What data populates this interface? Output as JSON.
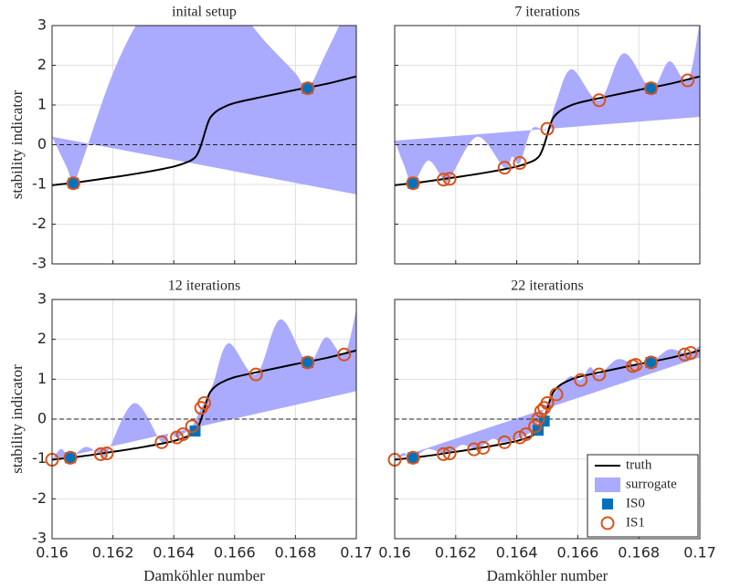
{
  "chart_data": [
    {
      "type": "line",
      "title": "inital setup",
      "ylabel": "stability indicator",
      "xlim": [
        0.16,
        0.17
      ],
      "ylim": [
        -3,
        3
      ],
      "xticks": [
        0.16,
        0.162,
        0.164,
        0.166,
        0.168,
        0.17
      ],
      "yticks": [
        -3,
        -2,
        -1,
        0,
        1,
        2,
        3
      ],
      "show_xtick_labels": false,
      "show_ytick_labels": true,
      "grid": true,
      "hline": 0,
      "series": [
        {
          "name": "truth",
          "color": "#000000",
          "x": [
            0.16,
            0.161,
            0.162,
            0.163,
            0.164,
            0.1645,
            0.1647,
            0.1648,
            0.1649,
            0.165,
            0.1651,
            0.1652,
            0.1654,
            0.1656,
            0.166,
            0.167,
            0.168,
            0.169,
            0.17
          ],
          "values": [
            -1.02,
            -0.93,
            -0.82,
            -0.7,
            -0.55,
            -0.42,
            -0.32,
            -0.2,
            0.0,
            0.25,
            0.5,
            0.68,
            0.84,
            0.93,
            1.05,
            1.22,
            1.38,
            1.53,
            1.72
          ]
        },
        {
          "name": "surrogate",
          "color": "#aaaaff",
          "x": [
            0.16,
            0.1605,
            0.1607,
            0.161,
            0.162,
            0.163,
            0.164,
            0.165,
            0.166,
            0.167,
            0.168,
            0.1684,
            0.169,
            0.17
          ],
          "upper": [
            0.2,
            -0.6,
            -0.97,
            -0.4,
            1.8,
            3.3,
            4.0,
            4.0,
            3.5,
            2.6,
            1.8,
            1.42,
            2.3,
            3.9
          ],
          "lower": [
            -2.0,
            -1.3,
            -0.97,
            -1.5,
            -2.7,
            -3.4,
            -3.8,
            -3.6,
            -2.2,
            -0.6,
            0.9,
            1.42,
            0.4,
            -1.25
          ]
        },
        {
          "name": "IS0",
          "color": "#0072bd",
          "marker": "square",
          "x": [
            0.1607,
            0.1684
          ],
          "values": [
            -0.97,
            1.42
          ]
        },
        {
          "name": "IS1",
          "color": "#d95319",
          "marker": "circle",
          "x": [
            0.1607,
            0.1684
          ],
          "values": [
            -0.97,
            1.42
          ]
        }
      ]
    },
    {
      "type": "line",
      "title": "7 iterations",
      "xlim": [
        0.16,
        0.17
      ],
      "ylim": [
        -3,
        3
      ],
      "xticks": [
        0.16,
        0.162,
        0.164,
        0.166,
        0.168,
        0.17
      ],
      "yticks": [
        -3,
        -2,
        -1,
        0,
        1,
        2,
        3
      ],
      "show_xtick_labels": false,
      "show_ytick_labels": false,
      "grid": true,
      "hline": 0,
      "series": [
        {
          "name": "truth",
          "color": "#000000",
          "x": [
            0.16,
            0.161,
            0.162,
            0.163,
            0.164,
            0.1645,
            0.1647,
            0.1648,
            0.1649,
            0.165,
            0.1651,
            0.1652,
            0.1654,
            0.1656,
            0.166,
            0.167,
            0.168,
            0.169,
            0.17
          ],
          "values": [
            -1.02,
            -0.93,
            -0.82,
            -0.7,
            -0.55,
            -0.42,
            -0.32,
            -0.2,
            0.0,
            0.25,
            0.5,
            0.68,
            0.84,
            0.93,
            1.05,
            1.22,
            1.38,
            1.53,
            1.72
          ]
        },
        {
          "name": "surrogate",
          "color": "#aaaaff",
          "x": [
            0.16,
            0.1603,
            0.1606,
            0.1611,
            0.1616,
            0.1618,
            0.1627,
            0.1636,
            0.16385,
            0.1641,
            0.1645,
            0.165,
            0.1653,
            0.1658,
            0.1667,
            0.1675,
            0.1684,
            0.169,
            0.1696,
            0.17
          ],
          "upper": [
            0.1,
            -0.5,
            -0.97,
            -0.4,
            -0.88,
            -0.86,
            0.2,
            -0.58,
            -0.3,
            -0.46,
            0.4,
            0.4,
            1.1,
            1.9,
            1.12,
            2.3,
            1.42,
            2.1,
            1.62,
            3.1
          ],
          "lower": [
            -2.45,
            -1.4,
            -0.97,
            -1.3,
            -0.88,
            -0.86,
            -1.75,
            -0.58,
            -0.75,
            -0.46,
            -1.0,
            0.4,
            0.5,
            0.1,
            1.12,
            0.0,
            1.42,
            0.9,
            1.62,
            0.7
          ]
        },
        {
          "name": "IS0",
          "color": "#0072bd",
          "marker": "square",
          "x": [
            0.1606,
            0.1684
          ],
          "values": [
            -0.97,
            1.42
          ]
        },
        {
          "name": "IS1",
          "color": "#d95319",
          "marker": "circle",
          "x": [
            0.1606,
            0.1616,
            0.1618,
            0.1636,
            0.1641,
            0.165,
            0.1667,
            0.1684,
            0.1696
          ],
          "values": [
            -0.97,
            -0.88,
            -0.86,
            -0.58,
            -0.46,
            0.4,
            1.12,
            1.42,
            1.62
          ]
        }
      ]
    },
    {
      "type": "line",
      "title": "12 iterations",
      "xlabel": "Damköhler number",
      "ylabel": "stability indicator",
      "xlim": [
        0.16,
        0.17
      ],
      "ylim": [
        -3,
        3
      ],
      "xticks": [
        0.16,
        0.162,
        0.164,
        0.166,
        0.168,
        0.17
      ],
      "yticks": [
        -3,
        -2,
        -1,
        0,
        1,
        2,
        3
      ],
      "show_xtick_labels": true,
      "show_ytick_labels": true,
      "grid": true,
      "hline": 0,
      "series": [
        {
          "name": "truth",
          "color": "#000000",
          "x": [
            0.16,
            0.161,
            0.162,
            0.163,
            0.164,
            0.1645,
            0.1647,
            0.1648,
            0.1649,
            0.165,
            0.1651,
            0.1652,
            0.1654,
            0.1656,
            0.166,
            0.167,
            0.168,
            0.169,
            0.17
          ],
          "values": [
            -1.02,
            -0.93,
            -0.82,
            -0.7,
            -0.55,
            -0.42,
            -0.32,
            -0.2,
            0.0,
            0.25,
            0.5,
            0.68,
            0.84,
            0.93,
            1.05,
            1.22,
            1.38,
            1.53,
            1.72
          ]
        },
        {
          "name": "surrogate",
          "color": "#aaaaff",
          "x": [
            0.16,
            0.1603,
            0.1606,
            0.1611,
            0.1616,
            0.1618,
            0.1627,
            0.1636,
            0.16385,
            0.1641,
            0.1643,
            0.1646,
            0.1649,
            0.165,
            0.1653,
            0.1658,
            0.1667,
            0.1675,
            0.1684,
            0.169,
            0.1696,
            0.17
          ],
          "upper": [
            -1.02,
            -0.75,
            -0.97,
            -0.7,
            -0.88,
            -0.86,
            0.4,
            -0.58,
            -0.35,
            -0.46,
            -0.38,
            -0.18,
            0.28,
            0.4,
            0.9,
            1.9,
            1.12,
            2.5,
            1.42,
            2.05,
            1.62,
            2.75
          ],
          "lower": [
            -1.02,
            -1.3,
            -0.97,
            -1.1,
            -0.88,
            -0.86,
            -1.8,
            -0.58,
            -0.7,
            -0.46,
            -0.38,
            -0.18,
            0.28,
            0.4,
            0.35,
            0.1,
            1.12,
            -0.2,
            1.42,
            0.9,
            1.62,
            0.7
          ]
        },
        {
          "name": "IS0",
          "color": "#0072bd",
          "marker": "square",
          "x": [
            0.1606,
            0.1647,
            0.1684
          ],
          "values": [
            -0.97,
            -0.3,
            1.42
          ]
        },
        {
          "name": "IS1",
          "color": "#d95319",
          "marker": "circle",
          "x": [
            0.16,
            0.1606,
            0.1616,
            0.1618,
            0.1636,
            0.1641,
            0.1643,
            0.1646,
            0.1649,
            0.165,
            0.1667,
            0.1684,
            0.1696
          ],
          "values": [
            -1.02,
            -0.97,
            -0.88,
            -0.86,
            -0.58,
            -0.46,
            -0.38,
            -0.18,
            0.28,
            0.4,
            1.12,
            1.42,
            1.62
          ]
        }
      ]
    },
    {
      "type": "line",
      "title": "22 iterations",
      "xlabel": "Damköhler number",
      "xlim": [
        0.16,
        0.17
      ],
      "ylim": [
        -3,
        3
      ],
      "xticks": [
        0.16,
        0.162,
        0.164,
        0.166,
        0.168,
        0.17
      ],
      "yticks": [
        -3,
        -2,
        -1,
        0,
        1,
        2,
        3
      ],
      "show_xtick_labels": true,
      "show_ytick_labels": false,
      "grid": true,
      "hline": 0,
      "legend": "lower right",
      "series": [
        {
          "name": "truth",
          "color": "#000000",
          "x": [
            0.16,
            0.161,
            0.162,
            0.163,
            0.164,
            0.1645,
            0.1647,
            0.1648,
            0.1649,
            0.165,
            0.1651,
            0.1652,
            0.1654,
            0.1656,
            0.166,
            0.167,
            0.168,
            0.169,
            0.17
          ],
          "values": [
            -1.02,
            -0.93,
            -0.82,
            -0.7,
            -0.55,
            -0.42,
            -0.32,
            -0.2,
            0.0,
            0.25,
            0.5,
            0.68,
            0.84,
            0.93,
            1.05,
            1.22,
            1.38,
            1.53,
            1.72
          ]
        },
        {
          "name": "surrogate",
          "color": "#aaaaff",
          "x": [
            0.16,
            0.1603,
            0.1606,
            0.1611,
            0.1617,
            0.1622,
            0.1627,
            0.1632,
            0.1636,
            0.1645,
            0.165,
            0.1657,
            0.1661,
            0.1664,
            0.1667,
            0.1673,
            0.1679,
            0.1684,
            0.169,
            0.1696,
            0.17
          ],
          "upper": [
            -1.0,
            -0.85,
            -0.97,
            -0.75,
            -0.87,
            -0.65,
            -0.74,
            -0.5,
            -0.58,
            -0.3,
            0.4,
            1.05,
            0.98,
            1.3,
            1.12,
            1.5,
            1.36,
            1.42,
            1.75,
            1.64,
            1.85
          ],
          "lower": [
            -1.04,
            -1.15,
            -0.97,
            -1.05,
            -0.87,
            -0.95,
            -0.74,
            -0.8,
            -0.58,
            -0.3,
            0.4,
            0.6,
            0.98,
            0.85,
            1.12,
            1.05,
            1.36,
            1.42,
            1.35,
            1.64,
            1.55
          ]
        },
        {
          "name": "IS0",
          "color": "#0072bd",
          "marker": "square",
          "x": [
            0.1606,
            0.1647,
            0.1649,
            0.1684
          ],
          "values": [
            -0.97,
            -0.28,
            -0.05,
            1.42
          ]
        },
        {
          "name": "IS1",
          "color": "#d95319",
          "marker": "circle",
          "x": [
            0.16,
            0.1606,
            0.1616,
            0.1618,
            0.1626,
            0.1629,
            0.1636,
            0.1641,
            0.1643,
            0.1646,
            0.1647,
            0.1648,
            0.1649,
            0.165,
            0.1653,
            0.1661,
            0.1667,
            0.1678,
            0.1679,
            0.1684,
            0.1695,
            0.1697
          ],
          "values": [
            -1.02,
            -0.97,
            -0.88,
            -0.86,
            -0.76,
            -0.72,
            -0.58,
            -0.46,
            -0.38,
            -0.18,
            0.0,
            0.2,
            0.28,
            0.4,
            0.62,
            0.98,
            1.12,
            1.33,
            1.36,
            1.42,
            1.62,
            1.66
          ]
        }
      ]
    }
  ]
}
